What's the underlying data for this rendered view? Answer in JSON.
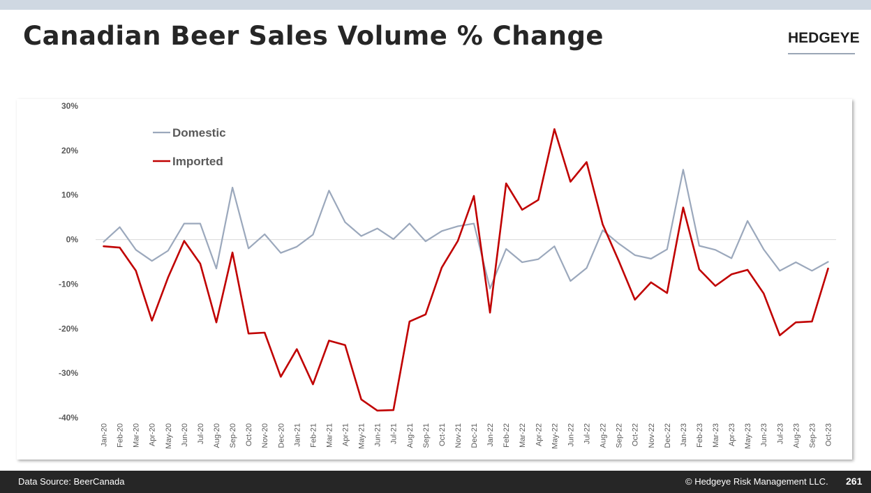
{
  "header": {
    "title": "Canadian Beer Sales Volume % Change",
    "logo_text": "HEDGEYE"
  },
  "footer": {
    "source": "Data Source: BeerCanada",
    "copyright": "© Hedgeye Risk Management LLC.",
    "page_number": "261"
  },
  "colors": {
    "domestic": "#9ba8bc",
    "imported": "#c00000",
    "axis_text": "#595959",
    "title": "#262626",
    "footer_bg": "#262626"
  },
  "chart_data": {
    "type": "line",
    "title": "",
    "xlabel": "",
    "ylabel": "",
    "ylim": [
      -40,
      30
    ],
    "yticks": [
      30,
      20,
      10,
      0,
      -10,
      -20,
      -30,
      -40
    ],
    "ytick_labels": [
      "30%",
      "20%",
      "10%",
      "0%",
      "-10%",
      "-20%",
      "-30%",
      "-40%"
    ],
    "grid": false,
    "legend_position": "top-left",
    "categories": [
      "Jan-20",
      "Feb-20",
      "Mar-20",
      "Apr-20",
      "May-20",
      "Jun-20",
      "Jul-20",
      "Aug-20",
      "Sep-20",
      "Oct-20",
      "Nov-20",
      "Dec-20",
      "Jan-21",
      "Feb-21",
      "Mar-21",
      "Apr-21",
      "May-21",
      "Jun-21",
      "Jul-21",
      "Aug-21",
      "Sep-21",
      "Oct-21",
      "Nov-21",
      "Dec-21",
      "Jan-22",
      "Feb-22",
      "Mar-22",
      "Apr-22",
      "May-22",
      "Jun-22",
      "Jul-22",
      "Aug-22",
      "Sep-22",
      "Oct-22",
      "Nov-22",
      "Dec-22",
      "Jan-23",
      "Feb-23",
      "Mar-23",
      "Apr-23",
      "May-23",
      "Jun-23",
      "Jul-23",
      "Aug-23",
      "Sep-23",
      "Oct-23"
    ],
    "series": [
      {
        "name": "Domestic",
        "color": "#9ba8bc",
        "values": [
          -0.5,
          2.8,
          -2.3,
          -4.8,
          -2.5,
          3.6,
          3.6,
          -6.5,
          11.7,
          -2.0,
          1.2,
          -3.0,
          -1.6,
          1.1,
          11.0,
          3.9,
          0.8,
          2.5,
          0.1,
          3.6,
          -0.4,
          1.9,
          3.0,
          3.6,
          -11.0,
          -2.1,
          -5.1,
          -4.4,
          -1.5,
          -9.3,
          -6.4,
          2.1,
          -0.9,
          -3.5,
          -4.3,
          -2.2,
          15.7,
          -1.4,
          -2.3,
          -4.2,
          4.2,
          -2.2,
          -7.0,
          -5.1,
          -7.0,
          -5.0
        ]
      },
      {
        "name": "Imported",
        "color": "#c00000",
        "values": [
          -1.5,
          -1.8,
          -7.0,
          -18.2,
          -8.5,
          -0.3,
          -5.4,
          -18.6,
          -2.9,
          -21.1,
          -20.9,
          -30.8,
          -24.6,
          -32.5,
          -22.7,
          -23.7,
          -35.9,
          -38.4,
          -38.3,
          -18.4,
          -16.8,
          -6.3,
          -0.3,
          9.8,
          -16.4,
          12.6,
          6.7,
          8.9,
          24.8,
          13.0,
          17.4,
          3.4,
          -4.8,
          -13.5,
          -9.6,
          -12.0,
          7.2,
          -6.7,
          -10.4,
          -7.8,
          -6.8,
          -12.1,
          -21.5,
          -18.6,
          -18.4,
          -6.5
        ]
      }
    ]
  }
}
